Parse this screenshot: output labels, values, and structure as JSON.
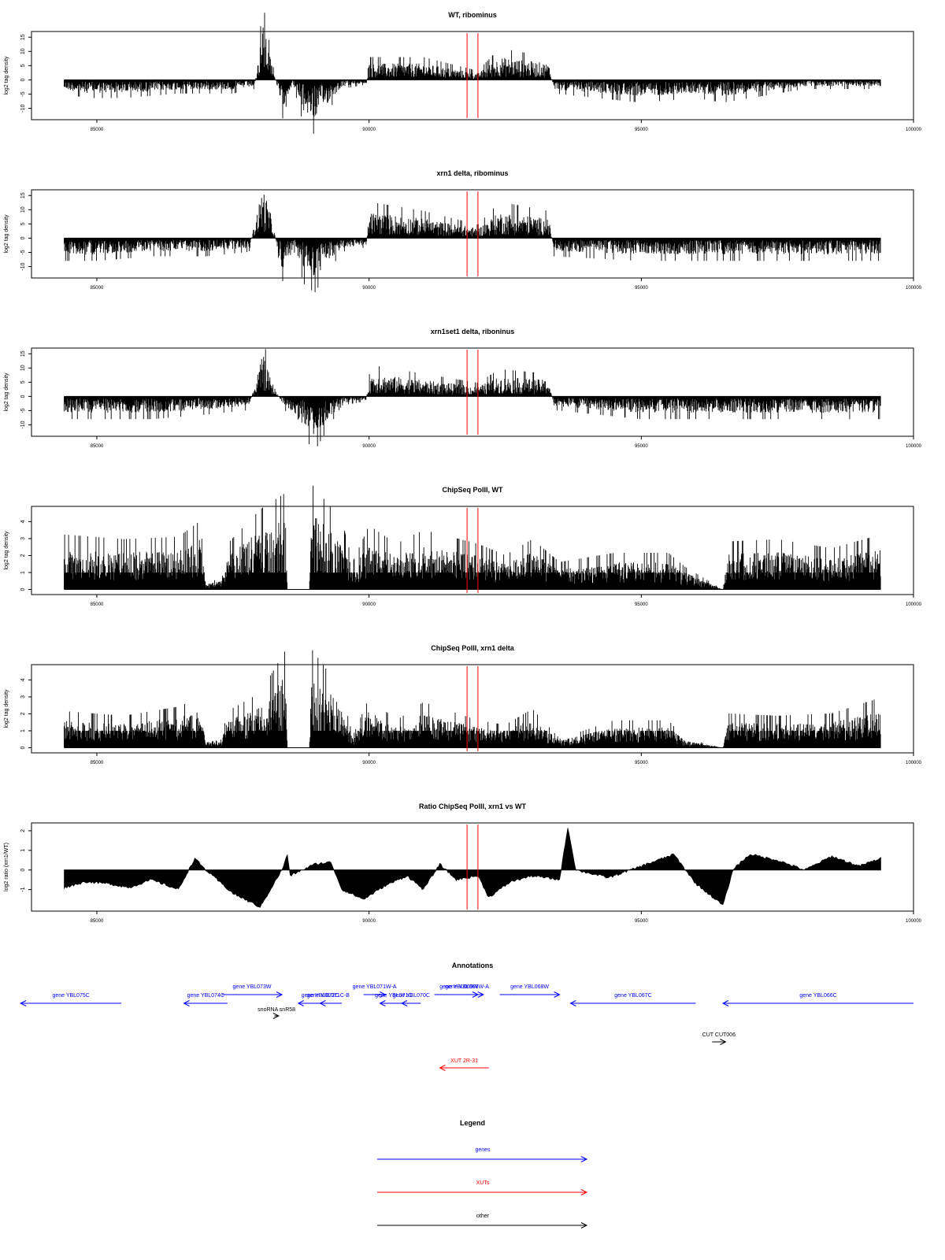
{
  "chart_data": [
    {
      "type": "bar",
      "title": "WT, ribominus",
      "ylabel": "log2 tag density",
      "xlim": [
        83800,
        100000
      ],
      "ylim": [
        -14,
        17
      ],
      "yticks": [
        15,
        10,
        5,
        0,
        -5,
        -10
      ],
      "xticks": [
        85000,
        90000,
        95000,
        100000
      ],
      "markers": [
        91800,
        92000
      ],
      "profile": [
        {
          "x": 84400,
          "y": -3
        },
        {
          "x": 84800,
          "y": -4
        },
        {
          "x": 85500,
          "y": -4
        },
        {
          "x": 86500,
          "y": -3
        },
        {
          "x": 87500,
          "y": -3
        },
        {
          "x": 87900,
          "y": -2
        },
        {
          "x": 88050,
          "y": 17
        },
        {
          "x": 88200,
          "y": 6
        },
        {
          "x": 88400,
          "y": -9
        },
        {
          "x": 88600,
          "y": -1
        },
        {
          "x": 88800,
          "y": -10
        },
        {
          "x": 89000,
          "y": -12
        },
        {
          "x": 89500,
          "y": -2
        },
        {
          "x": 89950,
          "y": -1
        },
        {
          "x": 90000,
          "y": 5
        },
        {
          "x": 91000,
          "y": 5
        },
        {
          "x": 92000,
          "y": 2
        },
        {
          "x": 92400,
          "y": 7
        },
        {
          "x": 93300,
          "y": 5
        },
        {
          "x": 93400,
          "y": -3
        },
        {
          "x": 95000,
          "y": -5
        },
        {
          "x": 96000,
          "y": -4
        },
        {
          "x": 96500,
          "y": -5
        },
        {
          "x": 98000,
          "y": -2
        },
        {
          "x": 99400,
          "y": -2
        }
      ]
    },
    {
      "type": "bar",
      "title": "xrn1 delta, ribominus",
      "ylabel": "log2 tag density",
      "xlim": [
        83800,
        100000
      ],
      "ylim": [
        -14,
        17
      ],
      "yticks": [
        15,
        10,
        5,
        0,
        -5,
        -10
      ],
      "xticks": [
        85000,
        90000,
        95000,
        100000
      ],
      "markers": [
        91800,
        92000
      ],
      "profile": [
        {
          "x": 84400,
          "y": -5
        },
        {
          "x": 85000,
          "y": -5
        },
        {
          "x": 86000,
          "y": -4
        },
        {
          "x": 87000,
          "y": -4
        },
        {
          "x": 87800,
          "y": -3
        },
        {
          "x": 88050,
          "y": 16
        },
        {
          "x": 88200,
          "y": 7
        },
        {
          "x": 88400,
          "y": -10
        },
        {
          "x": 88600,
          "y": -2
        },
        {
          "x": 88800,
          "y": -10
        },
        {
          "x": 89000,
          "y": -12
        },
        {
          "x": 89500,
          "y": -3
        },
        {
          "x": 89950,
          "y": -2
        },
        {
          "x": 90000,
          "y": 8
        },
        {
          "x": 91000,
          "y": 6
        },
        {
          "x": 92000,
          "y": 3
        },
        {
          "x": 92400,
          "y": 8
        },
        {
          "x": 93300,
          "y": 6
        },
        {
          "x": 93400,
          "y": -4
        },
        {
          "x": 95000,
          "y": -5
        },
        {
          "x": 96500,
          "y": -5
        },
        {
          "x": 98000,
          "y": -5
        },
        {
          "x": 99400,
          "y": -5
        }
      ]
    },
    {
      "type": "bar",
      "title": "xrn1set1 delta, riboninus",
      "ylabel": "log2 tag density",
      "xlim": [
        83800,
        100000
      ],
      "ylim": [
        -14,
        17
      ],
      "yticks": [
        15,
        10,
        5,
        0,
        -5,
        -10
      ],
      "xticks": [
        85000,
        90000,
        95000,
        100000
      ],
      "markers": [
        91800,
        92000
      ],
      "profile": [
        {
          "x": 84400,
          "y": -5
        },
        {
          "x": 85000,
          "y": -5
        },
        {
          "x": 86000,
          "y": -5
        },
        {
          "x": 87000,
          "y": -4
        },
        {
          "x": 87800,
          "y": -3
        },
        {
          "x": 88050,
          "y": 13
        },
        {
          "x": 88200,
          "y": 5
        },
        {
          "x": 88400,
          "y": -2
        },
        {
          "x": 88800,
          "y": -9
        },
        {
          "x": 89000,
          "y": -12
        },
        {
          "x": 89500,
          "y": -2
        },
        {
          "x": 89950,
          "y": -1
        },
        {
          "x": 90000,
          "y": 7
        },
        {
          "x": 91000,
          "y": 5
        },
        {
          "x": 92000,
          "y": 3
        },
        {
          "x": 92400,
          "y": 6
        },
        {
          "x": 93300,
          "y": 5
        },
        {
          "x": 93400,
          "y": -3
        },
        {
          "x": 95000,
          "y": -5
        },
        {
          "x": 96500,
          "y": -5
        },
        {
          "x": 98000,
          "y": -5
        },
        {
          "x": 99400,
          "y": -5
        }
      ]
    },
    {
      "type": "bar",
      "title": "ChipSeq PolII, WT",
      "ylabel": "log2 tag density",
      "xlim": [
        83800,
        100000
      ],
      "ylim": [
        -0.3,
        4.9
      ],
      "yticks": [
        4,
        3,
        2,
        1,
        0
      ],
      "xticks": [
        85000,
        90000,
        95000,
        100000
      ],
      "markers": [
        91800,
        92000
      ],
      "profile": [
        {
          "x": 84400,
          "y": 2.4
        },
        {
          "x": 85500,
          "y": 2.2
        },
        {
          "x": 86500,
          "y": 2.3
        },
        {
          "x": 86900,
          "y": 3
        },
        {
          "x": 87000,
          "y": 0.3
        },
        {
          "x": 87300,
          "y": 0.5
        },
        {
          "x": 87400,
          "y": 2
        },
        {
          "x": 88000,
          "y": 3.5
        },
        {
          "x": 88450,
          "y": 4.2
        },
        {
          "x": 88500,
          "y": 0
        },
        {
          "x": 88900,
          "y": 0
        },
        {
          "x": 88950,
          "y": 4.6
        },
        {
          "x": 89500,
          "y": 3
        },
        {
          "x": 89700,
          "y": 1.2
        },
        {
          "x": 90000,
          "y": 2.8
        },
        {
          "x": 90500,
          "y": 2
        },
        {
          "x": 91000,
          "y": 2.6
        },
        {
          "x": 92000,
          "y": 2
        },
        {
          "x": 92500,
          "y": 1.5
        },
        {
          "x": 93000,
          "y": 2.2
        },
        {
          "x": 93500,
          "y": 1.2
        },
        {
          "x": 94500,
          "y": 1.6
        },
        {
          "x": 95500,
          "y": 1.6
        },
        {
          "x": 95800,
          "y": 1
        },
        {
          "x": 96500,
          "y": 0
        },
        {
          "x": 96600,
          "y": 2.1
        },
        {
          "x": 97500,
          "y": 2.2
        },
        {
          "x": 98500,
          "y": 1.8
        },
        {
          "x": 99400,
          "y": 2.4
        }
      ]
    },
    {
      "type": "bar",
      "title": "ChipSeq PolII, xrn1 delta",
      "ylabel": "log2 tag density",
      "xlim": [
        83800,
        100000
      ],
      "ylim": [
        -0.3,
        4.9
      ],
      "yticks": [
        4,
        3,
        2,
        1,
        0
      ],
      "xticks": [
        85000,
        90000,
        95000,
        100000
      ],
      "markers": [
        91800,
        92000
      ],
      "profile": [
        {
          "x": 84400,
          "y": 1.6
        },
        {
          "x": 85500,
          "y": 1.4
        },
        {
          "x": 86500,
          "y": 1.8
        },
        {
          "x": 86900,
          "y": 2.2
        },
        {
          "x": 87000,
          "y": 0.3
        },
        {
          "x": 87300,
          "y": 0.5
        },
        {
          "x": 87400,
          "y": 1.6
        },
        {
          "x": 88000,
          "y": 2.4
        },
        {
          "x": 88450,
          "y": 4.2
        },
        {
          "x": 88500,
          "y": 0
        },
        {
          "x": 88900,
          "y": 0
        },
        {
          "x": 88950,
          "y": 4.3
        },
        {
          "x": 89500,
          "y": 2.5
        },
        {
          "x": 89700,
          "y": 0.5
        },
        {
          "x": 90000,
          "y": 2.2
        },
        {
          "x": 90500,
          "y": 1.2
        },
        {
          "x": 91000,
          "y": 2
        },
        {
          "x": 92000,
          "y": 1.2
        },
        {
          "x": 92500,
          "y": 1
        },
        {
          "x": 93000,
          "y": 1.7
        },
        {
          "x": 93500,
          "y": 0.4
        },
        {
          "x": 94500,
          "y": 1.2
        },
        {
          "x": 95500,
          "y": 1.2
        },
        {
          "x": 95800,
          "y": 0.4
        },
        {
          "x": 96500,
          "y": 0
        },
        {
          "x": 96600,
          "y": 1.5
        },
        {
          "x": 97500,
          "y": 1.4
        },
        {
          "x": 98500,
          "y": 1.5
        },
        {
          "x": 99400,
          "y": 2.2
        }
      ]
    },
    {
      "type": "area",
      "title": "Ratio ChipSeq PolII, xrn1 vs WT",
      "ylabel": "log2 ratio (xrn1/WT)",
      "xlim": [
        83800,
        100000
      ],
      "ylim": [
        -2.1,
        2.4
      ],
      "yticks": [
        2,
        1,
        0,
        -1
      ],
      "xticks": [
        85000,
        90000,
        95000,
        100000
      ],
      "markers": [
        91800,
        92000
      ],
      "profile": [
        {
          "x": 84400,
          "y": -0.9
        },
        {
          "x": 84800,
          "y": -0.6
        },
        {
          "x": 85200,
          "y": -0.7
        },
        {
          "x": 85600,
          "y": -0.9
        },
        {
          "x": 86000,
          "y": -0.5
        },
        {
          "x": 86500,
          "y": -1
        },
        {
          "x": 86800,
          "y": 0.6
        },
        {
          "x": 87000,
          "y": 0
        },
        {
          "x": 87500,
          "y": -1.2
        },
        {
          "x": 88000,
          "y": -1.9
        },
        {
          "x": 88400,
          "y": 0
        },
        {
          "x": 88500,
          "y": 0.8
        },
        {
          "x": 88550,
          "y": -0.3
        },
        {
          "x": 89000,
          "y": 0.3
        },
        {
          "x": 89300,
          "y": 0.4
        },
        {
          "x": 89500,
          "y": -1
        },
        {
          "x": 89900,
          "y": -1.5
        },
        {
          "x": 90300,
          "y": -0.8
        },
        {
          "x": 90700,
          "y": -0.3
        },
        {
          "x": 91000,
          "y": -1
        },
        {
          "x": 91300,
          "y": 0.3
        },
        {
          "x": 91600,
          "y": -0.5
        },
        {
          "x": 92000,
          "y": -0.3
        },
        {
          "x": 92200,
          "y": -1.4
        },
        {
          "x": 92600,
          "y": -0.6
        },
        {
          "x": 93000,
          "y": -0.3
        },
        {
          "x": 93500,
          "y": -0.5
        },
        {
          "x": 93650,
          "y": 2.2
        },
        {
          "x": 93800,
          "y": 0
        },
        {
          "x": 94400,
          "y": -0.4
        },
        {
          "x": 95000,
          "y": 0.2
        },
        {
          "x": 95600,
          "y": 0.8
        },
        {
          "x": 96000,
          "y": -0.7
        },
        {
          "x": 96500,
          "y": -1.8
        },
        {
          "x": 96700,
          "y": 0.1
        },
        {
          "x": 97000,
          "y": 0.8
        },
        {
          "x": 97500,
          "y": 0.5
        },
        {
          "x": 98000,
          "y": 0
        },
        {
          "x": 98500,
          "y": 0.7
        },
        {
          "x": 99000,
          "y": 0.2
        },
        {
          "x": 99400,
          "y": 0.6
        }
      ]
    }
  ],
  "annotations": {
    "title": "Annotations",
    "features": [
      {
        "label": "gene YBL075C",
        "start": 85450,
        "end": 83600,
        "type": "gene",
        "track": 1
      },
      {
        "label": "gene YBL074C",
        "start": 87400,
        "end": 86600,
        "type": "gene",
        "track": 1
      },
      {
        "label": "gene YBL073W",
        "start": 87300,
        "end": 88400,
        "type": "gene",
        "track": 0
      },
      {
        "label": "snoRNA snR58",
        "start": 88260,
        "end": 88340,
        "type": "other",
        "track": 2
      },
      {
        "label": "gene YBL072C",
        "start": 89500,
        "end": 88700,
        "type": "gene",
        "track": 1
      },
      {
        "label": "gene YBL071C-B",
        "start": 89400,
        "end": 89100,
        "type": "gene",
        "track": 1
      },
      {
        "label": "gene YBL071W-A",
        "start": 89900,
        "end": 90300,
        "type": "gene",
        "track": 0
      },
      {
        "label": "gene YBL071C",
        "start": 90700,
        "end": 90200,
        "type": "gene",
        "track": 1
      },
      {
        "label": "gene YBL070C",
        "start": 90950,
        "end": 90600,
        "type": "gene",
        "track": 1
      },
      {
        "label": "gene YBL069W",
        "start": 91200,
        "end": 92100,
        "type": "gene",
        "track": 0
      },
      {
        "label": "gene YBL068W-A",
        "start": 91600,
        "end": 92000,
        "type": "gene",
        "track": 0
      },
      {
        "label": "gene YBL068W",
        "start": 92400,
        "end": 93500,
        "type": "gene",
        "track": 0
      },
      {
        "label": "gene YBL067C",
        "start": 96000,
        "end": 93700,
        "type": "gene",
        "track": 1
      },
      {
        "label": "gene YBL066C",
        "start": 100000,
        "end": 96500,
        "type": "gene",
        "track": 1
      },
      {
        "label": "CUT CUT006",
        "start": 96300,
        "end": 96550,
        "type": "other",
        "track": 3
      },
      {
        "label": "XUT 2R-31",
        "start": 92200,
        "end": 91300,
        "type": "xut",
        "track": 4
      }
    ]
  },
  "legend": {
    "title": "Legend",
    "items": [
      {
        "label": "genes",
        "type": "gene"
      },
      {
        "label": "XUTs",
        "type": "xut"
      },
      {
        "label": "other",
        "type": "other"
      }
    ]
  },
  "colors": {
    "gene": "#0000ff",
    "xut": "#ff0000",
    "other": "#000000",
    "marker": "#ff0000",
    "signal": "#000000"
  }
}
